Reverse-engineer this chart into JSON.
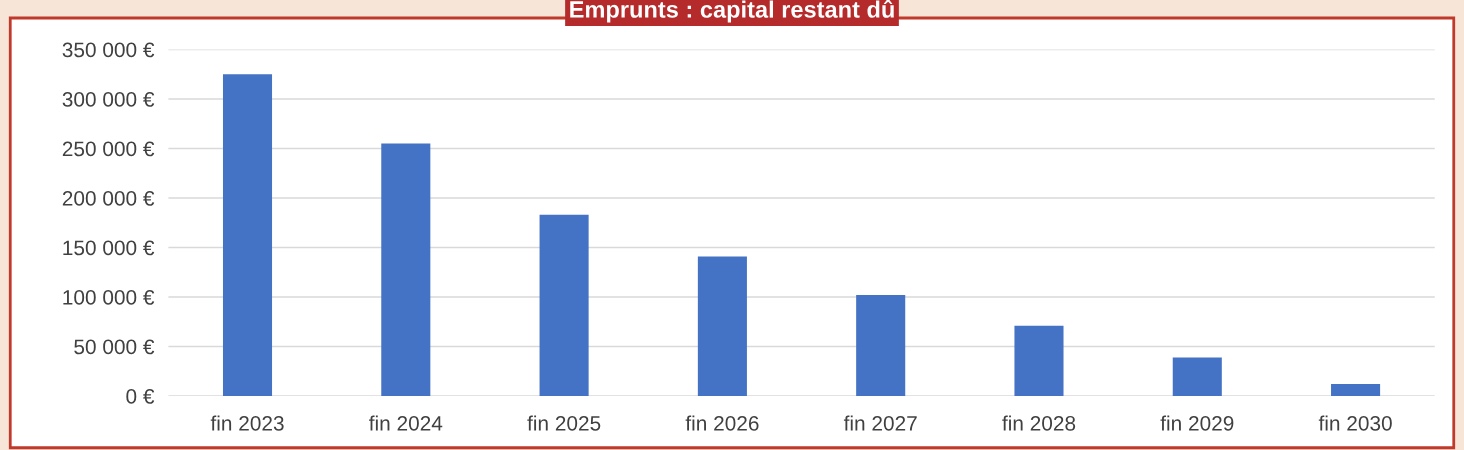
{
  "chart_data": {
    "type": "bar",
    "title": "Emprunts : capital restant dû",
    "categories": [
      "fin 2023",
      "fin 2024",
      "fin 2025",
      "fin 2026",
      "fin 2027",
      "fin 2028",
      "fin 2029",
      "fin 2030"
    ],
    "values": [
      325000,
      255000,
      183000,
      141000,
      102000,
      71000,
      39000,
      12000
    ],
    "color": "#4472c4",
    "ylim": [
      0,
      350000
    ],
    "yticks": [
      {
        "value": 0,
        "label": "0 €"
      },
      {
        "value": 50000,
        "label": "50 000 €"
      },
      {
        "value": 100000,
        "label": "100 000 €"
      },
      {
        "value": 150000,
        "label": "150 000 €"
      },
      {
        "value": 200000,
        "label": "200 000 €"
      },
      {
        "value": 250000,
        "label": "250 000 €"
      },
      {
        "value": 300000,
        "label": "300 000 €"
      },
      {
        "value": 350000,
        "label": "350 000 €"
      }
    ],
    "grid": "y"
  }
}
